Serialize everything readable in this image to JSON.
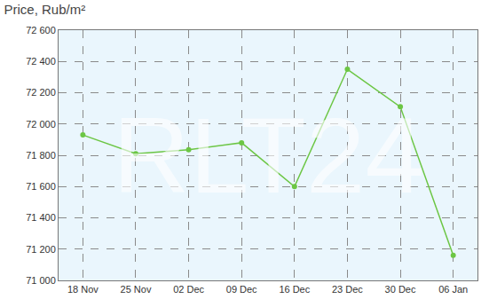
{
  "chart_data": {
    "type": "line",
    "title": "Price, Rub/m²",
    "categories": [
      "18 Nov",
      "25 Nov",
      "02 Dec",
      "09 Dec",
      "16 Dec",
      "23 Dec",
      "30 Dec",
      "06 Jan"
    ],
    "values": [
      71930,
      71810,
      71835,
      71880,
      71600,
      72350,
      72110,
      71160
    ],
    "color": "#6cc644",
    "marker": "circle",
    "ylim": [
      71000,
      72600
    ],
    "yticks": [
      {
        "value": 71000,
        "label": "71 000"
      },
      {
        "value": 71200,
        "label": "71 200"
      },
      {
        "value": 71400,
        "label": "71 400"
      },
      {
        "value": 71600,
        "label": "71 600"
      },
      {
        "value": 71800,
        "label": "71 800"
      },
      {
        "value": 72000,
        "label": "72 000"
      },
      {
        "value": 72200,
        "label": "72 200"
      },
      {
        "value": 72400,
        "label": "72 400"
      },
      {
        "value": 72600,
        "label": "72 600"
      }
    ],
    "grid": true,
    "annotations": [
      "RLT24"
    ]
  }
}
